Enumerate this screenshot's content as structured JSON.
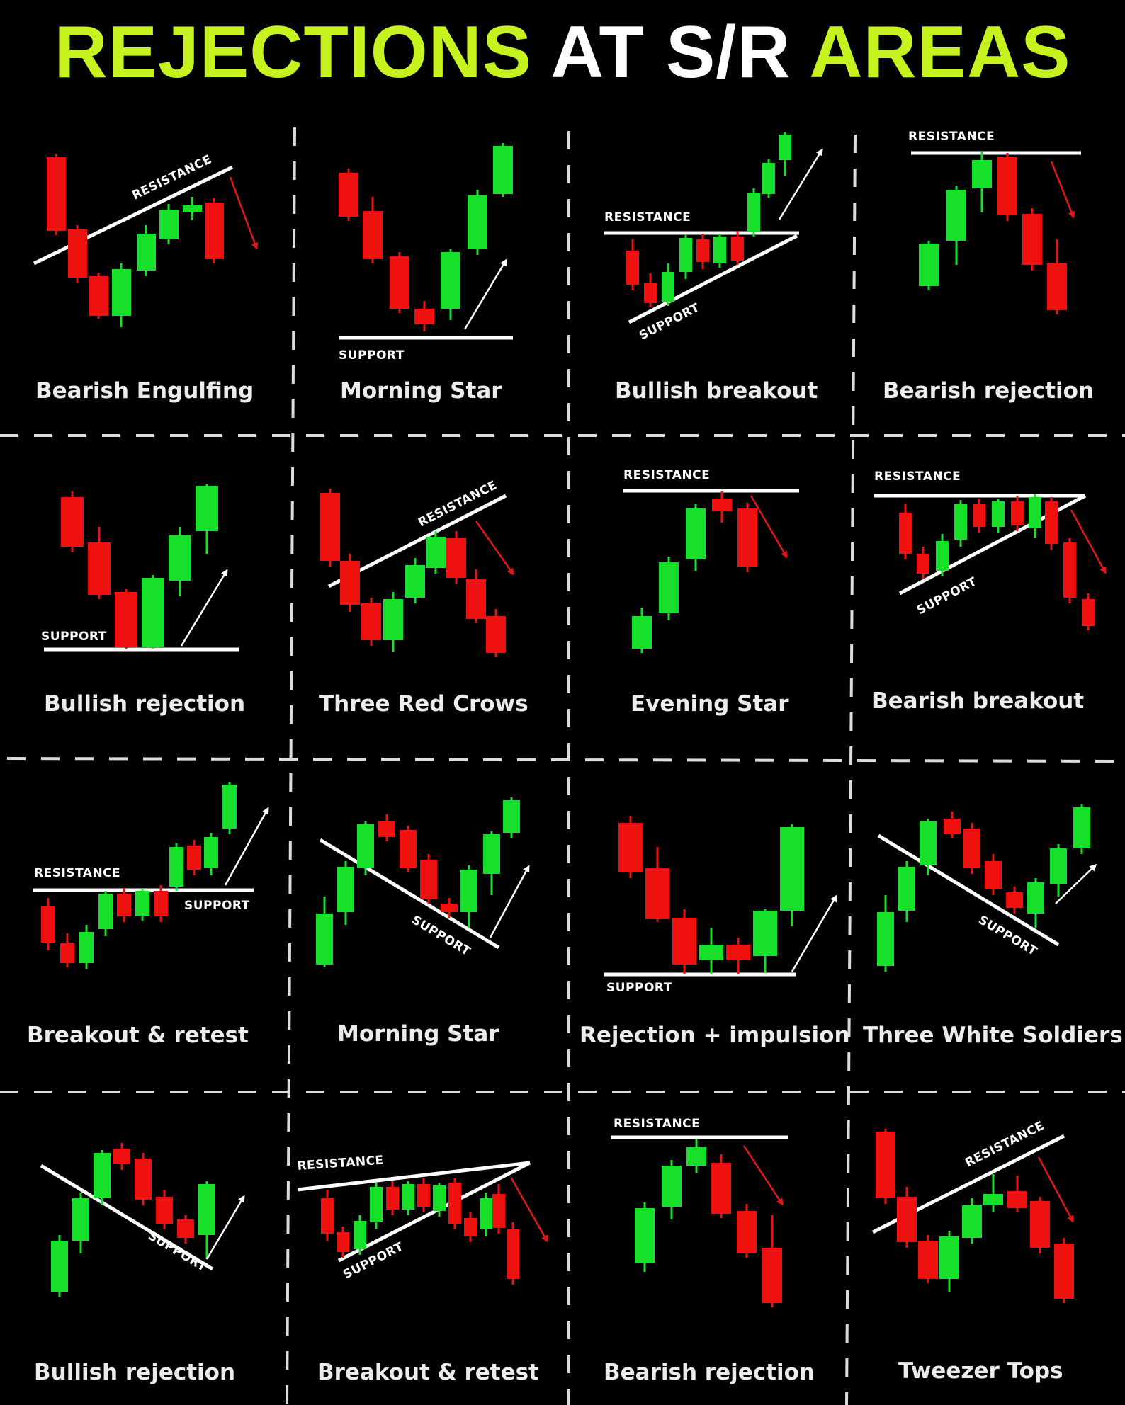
{
  "title": {
    "part1": "REJECTIONS",
    "part2": "AT S/R",
    "part3": "AREAS"
  },
  "colors": {
    "title_accent": "#c6f21f",
    "bull": "#16e02a",
    "bear": "#ef1010",
    "line": "#ffffff",
    "arrow_bear": "#e01818"
  },
  "labels": {
    "resistance": "RESISTANCE",
    "support": "SUPPORT"
  },
  "patterns": [
    {
      "caption": "Bearish Engulfing"
    },
    {
      "caption": "Morning Star"
    },
    {
      "caption": "Bullish breakout"
    },
    {
      "caption": "Bearish rejection"
    },
    {
      "caption": "Bullish rejection"
    },
    {
      "caption": "Three Red Crows"
    },
    {
      "caption": "Evening Star"
    },
    {
      "caption": "Bearish breakout"
    },
    {
      "caption": "Breakout & retest"
    },
    {
      "caption": "Morning Star"
    },
    {
      "caption": "Rejection + impulsion"
    },
    {
      "caption": "Three White Soldiers"
    },
    {
      "caption": "Bullish rejection"
    },
    {
      "caption": "Breakout & retest"
    },
    {
      "caption": "Bearish rejection"
    },
    {
      "caption": "Tweezer Tops"
    }
  ]
}
